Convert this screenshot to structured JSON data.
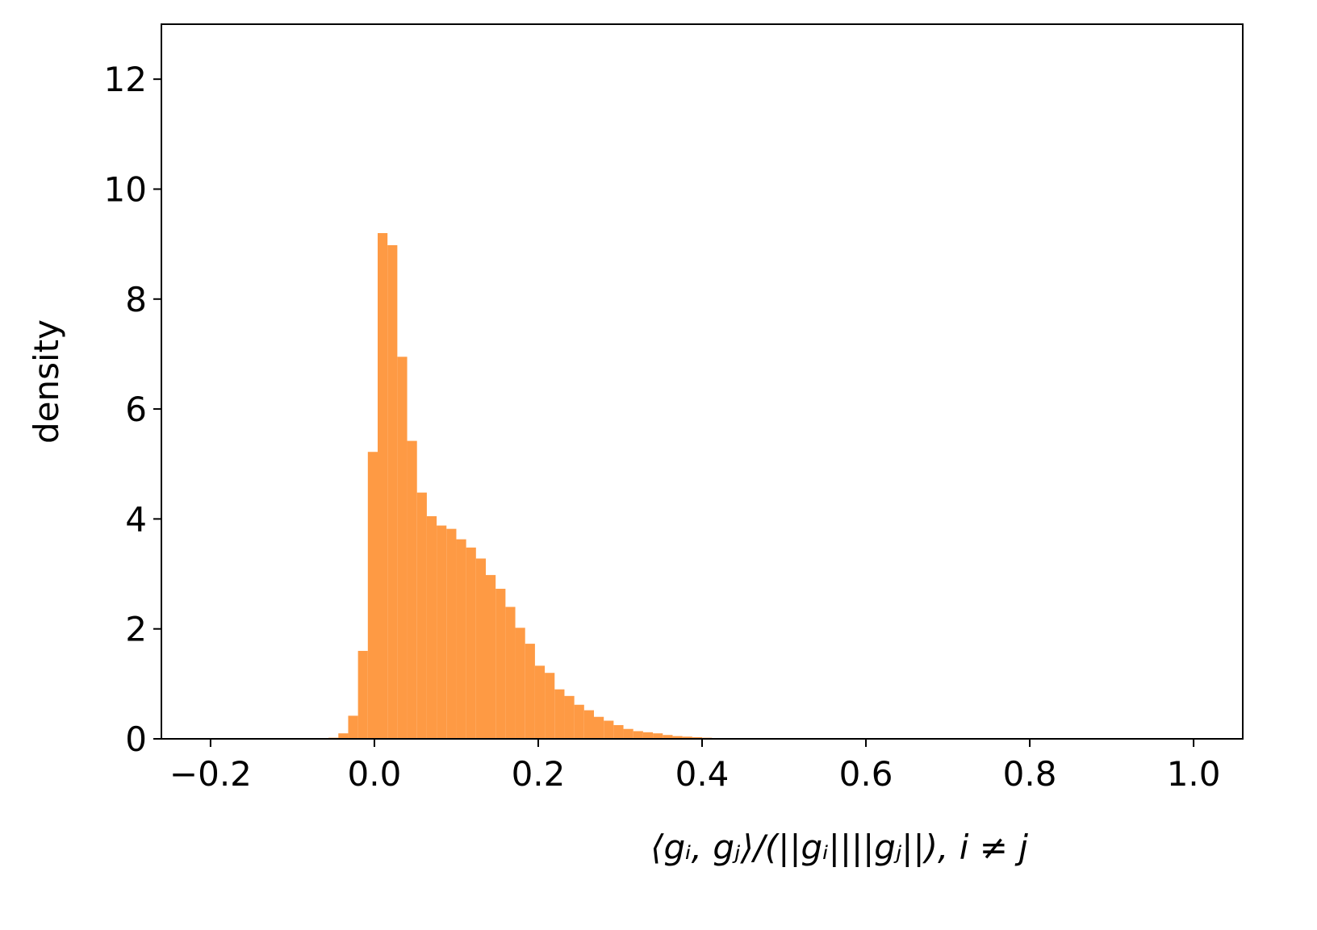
{
  "chart_data": {
    "type": "histogram",
    "xlabel": "⟨gᵢ, gⱼ⟩/(||gᵢ||||gⱼ||), i ≠ j",
    "ylabel": "density",
    "bins": [
      -0.056,
      -0.044,
      -0.032,
      -0.02,
      -0.008,
      0.004,
      0.016,
      0.028,
      0.04,
      0.052,
      0.064,
      0.076,
      0.088,
      0.1,
      0.112,
      0.124,
      0.136,
      0.148,
      0.16,
      0.172,
      0.184,
      0.196,
      0.208,
      0.22,
      0.232,
      0.244,
      0.256,
      0.268,
      0.28,
      0.292,
      0.304,
      0.316,
      0.328,
      0.34,
      0.352,
      0.364,
      0.376,
      0.388,
      0.4,
      0.412,
      0.424
    ],
    "values": [
      0.02,
      0.1,
      0.42,
      1.6,
      5.22,
      9.2,
      8.98,
      6.95,
      5.42,
      4.48,
      4.05,
      3.88,
      3.82,
      3.63,
      3.48,
      3.28,
      2.98,
      2.73,
      2.4,
      2.02,
      1.73,
      1.33,
      1.2,
      0.9,
      0.78,
      0.62,
      0.52,
      0.4,
      0.33,
      0.25,
      0.18,
      0.14,
      0.12,
      0.1,
      0.07,
      0.05,
      0.04,
      0.03,
      0.02,
      0.01
    ],
    "color": "#fe9a44",
    "xlim": [
      -0.26,
      1.06
    ],
    "xticks": [
      {
        "value": -0.2,
        "label": "−0.2"
      },
      {
        "value": 0,
        "label": "0.0"
      },
      0.2,
      0.4,
      0.6,
      0.8,
      {
        "value": 1,
        "label": "1.0"
      }
    ],
    "ylim": [
      0,
      13
    ],
    "yticks": [
      0,
      2,
      4,
      6,
      8,
      10,
      12
    ]
  }
}
